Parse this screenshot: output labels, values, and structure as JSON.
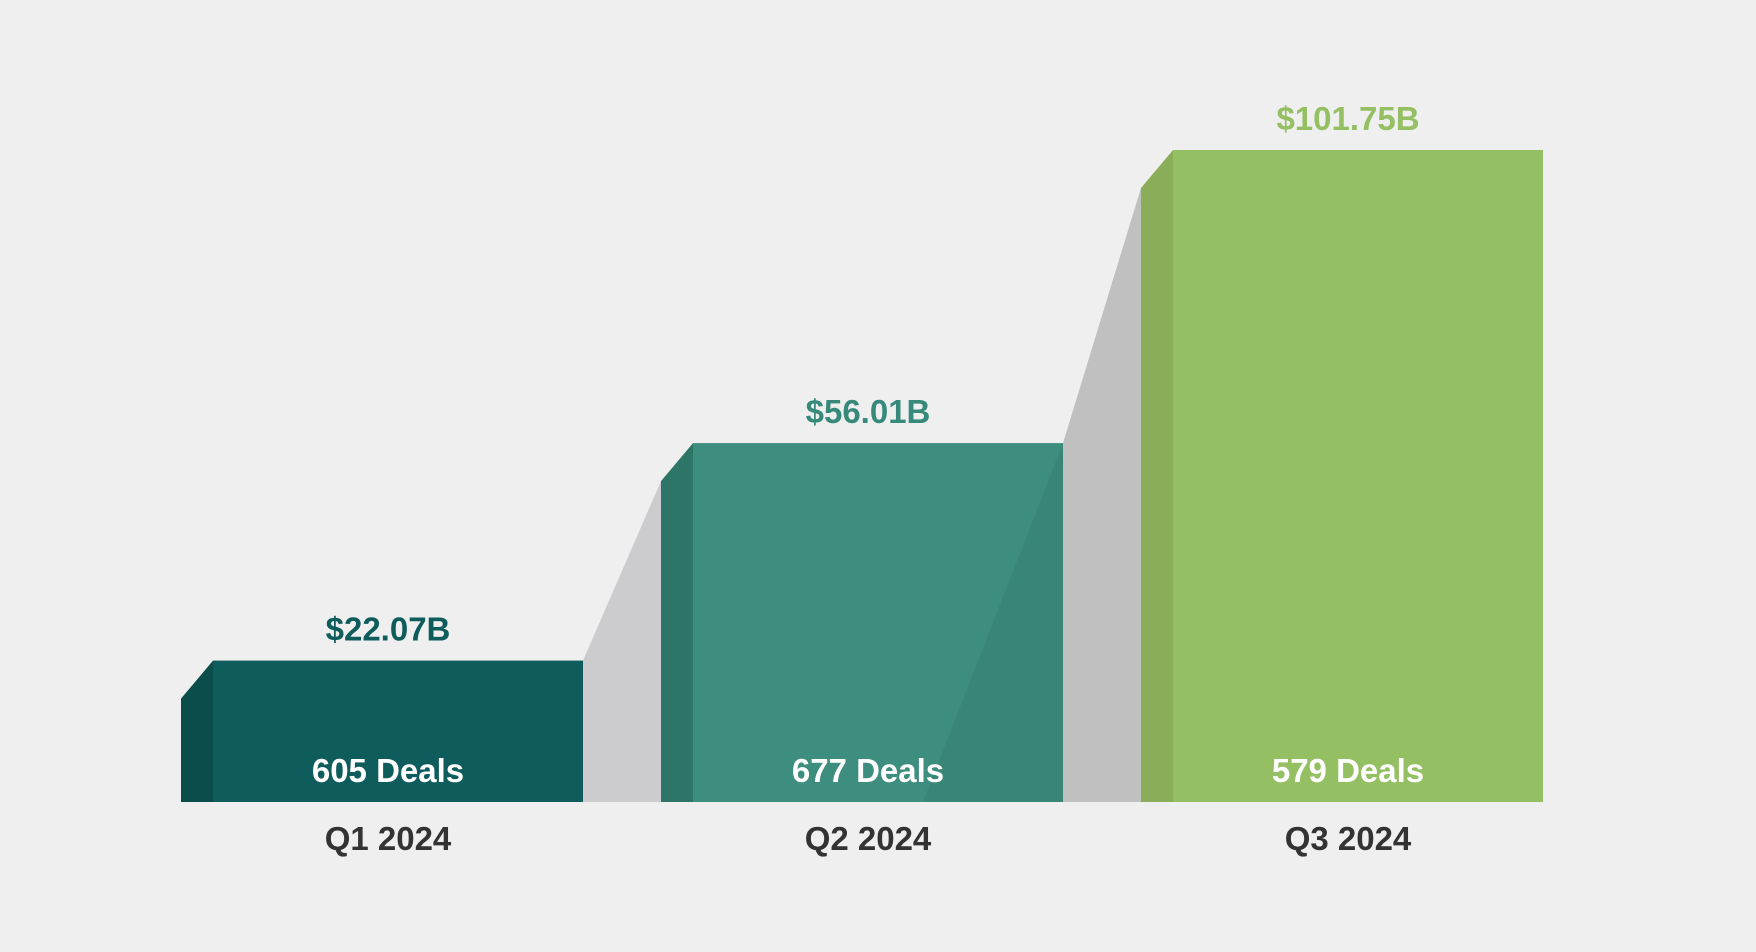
{
  "chart_data": {
    "type": "bar",
    "categories": [
      "Q1 2024",
      "Q2 2024",
      "Q3 2024"
    ],
    "values": [
      22.07,
      56.01,
      101.75
    ],
    "value_labels": [
      "$22.07B",
      "$56.01B",
      "$101.75B"
    ],
    "deal_counts": [
      605,
      677,
      579
    ],
    "deal_labels": [
      "605 Deals",
      "677 Deals",
      "579 Deals"
    ],
    "colors": [
      "#0f5c5c",
      "#378a7a",
      "#95bf63"
    ],
    "side_colors": [
      "#0b4d4b",
      "#2d7567",
      "#89ad58"
    ],
    "connector_color": "#c5c6c8",
    "label_color": "#333333",
    "title": "",
    "xlabel": "",
    "ylabel": "",
    "grid": false,
    "legend": "none"
  }
}
